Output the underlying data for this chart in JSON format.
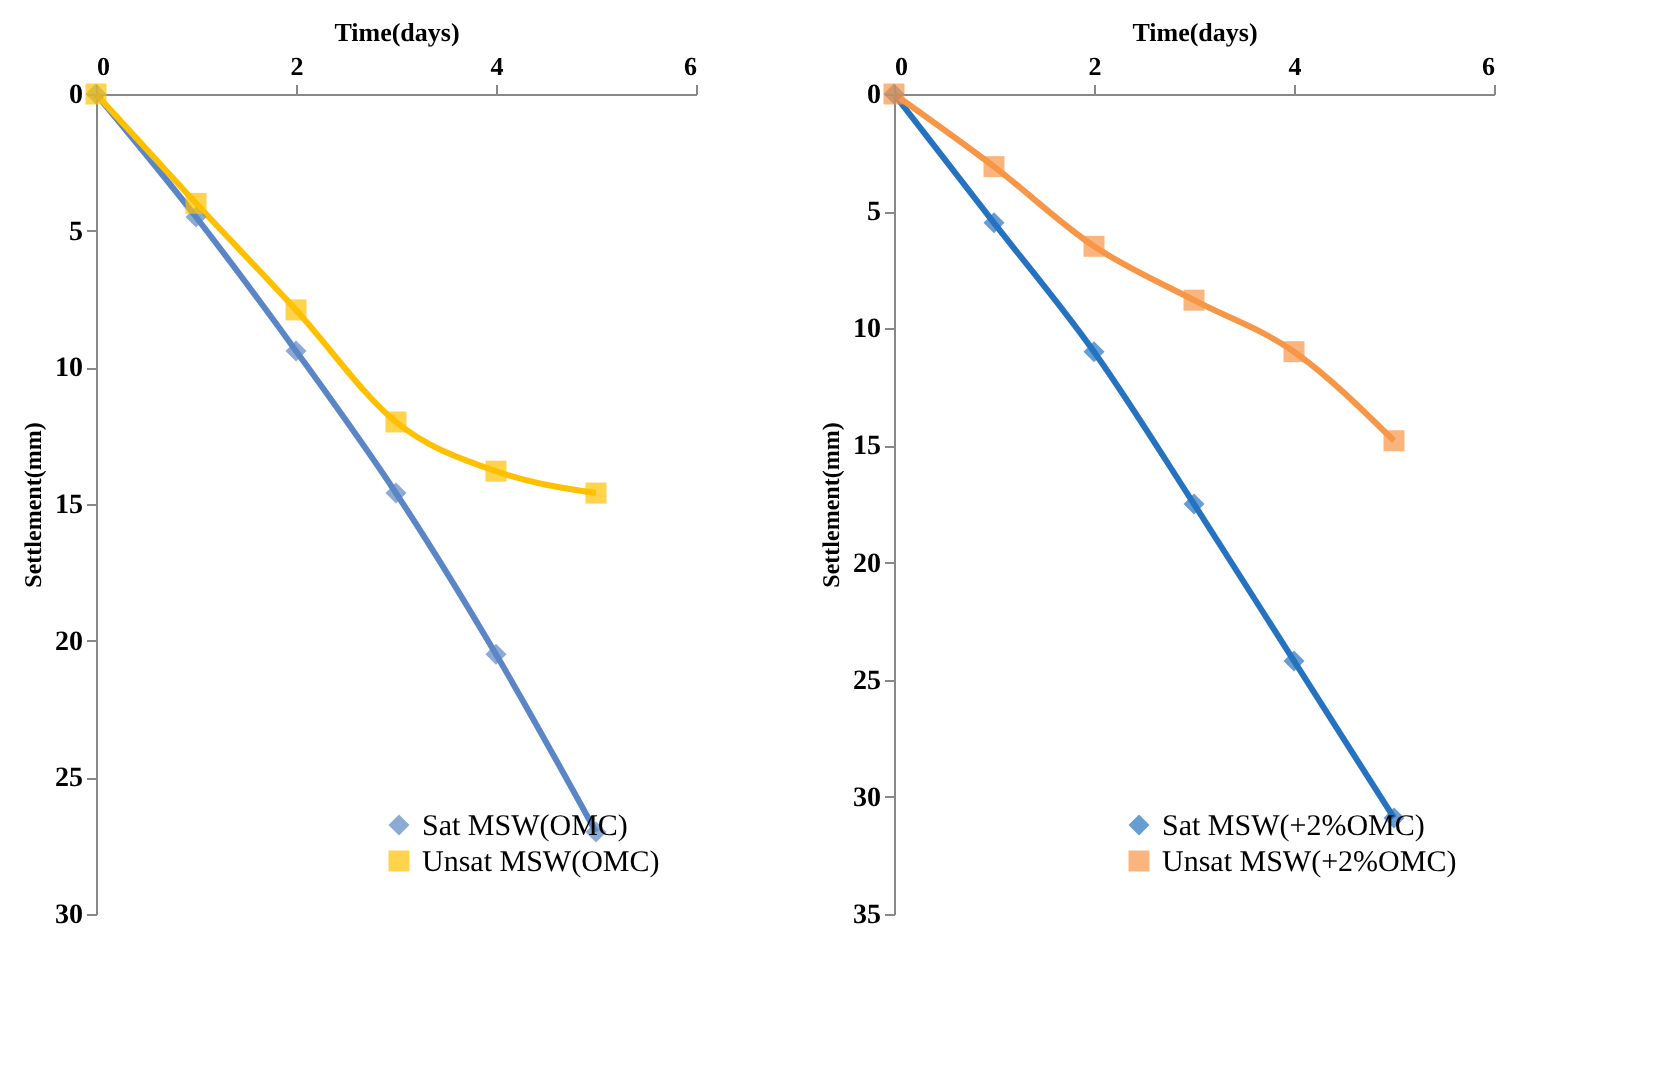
{
  "chart_data": [
    {
      "type": "line",
      "xlabel": "Time(days)",
      "ylabel": "Settlement(mm)",
      "x": [
        0,
        1,
        2,
        3,
        4,
        5
      ],
      "xlim": [
        0,
        6
      ],
      "xticks": [
        0,
        2,
        4,
        6
      ],
      "ylim": [
        30,
        0
      ],
      "yticks": [
        0,
        5,
        10,
        15,
        20,
        25,
        30
      ],
      "grid": false,
      "legend": "bottom right",
      "series": [
        {
          "name": "Sat MSW(OMC)",
          "color": "#5b86c5",
          "marker": "diamond",
          "values": [
            0,
            4.5,
            9.4,
            14.6,
            20.5,
            27
          ]
        },
        {
          "name": "Unsat MSW(OMC)",
          "color": "#ffc000",
          "marker": "square",
          "values": [
            0,
            4,
            7.9,
            12,
            13.8,
            14.6
          ]
        }
      ]
    },
    {
      "type": "line",
      "xlabel": "Time(days)",
      "ylabel": "Settlement(mm)",
      "x": [
        0,
        1,
        2,
        3,
        4,
        5
      ],
      "xlim": [
        0,
        6
      ],
      "xticks": [
        0,
        2,
        4,
        6
      ],
      "ylim": [
        35,
        0
      ],
      "yticks": [
        0,
        5,
        10,
        15,
        20,
        25,
        30,
        35
      ],
      "grid": false,
      "legend": "bottom right",
      "series": [
        {
          "name": "Sat MSW(+2%OMC)",
          "color": "#2573c0",
          "marker": "diamond",
          "values": [
            0,
            5.5,
            11,
            17.5,
            24.2,
            30.9
          ]
        },
        {
          "name": "Unsat MSW(+2%OMC)",
          "color": "#f79646",
          "marker": "square",
          "values": [
            0,
            3.1,
            6.5,
            8.8,
            11,
            14.8
          ]
        }
      ]
    }
  ]
}
